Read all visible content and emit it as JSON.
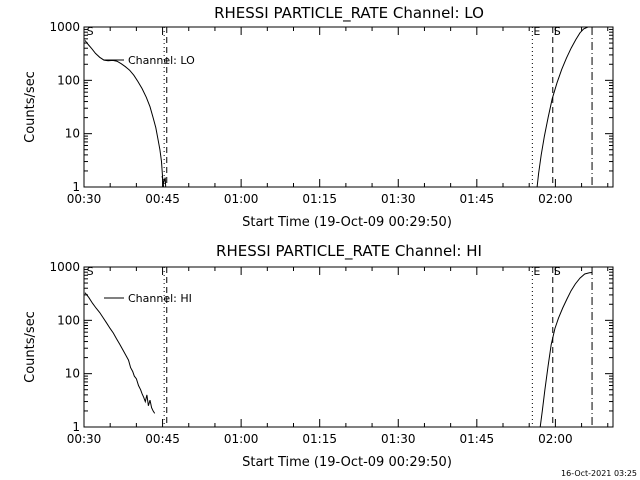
{
  "timestamp": "16-Oct-2021 03:25",
  "chart_data": [
    {
      "type": "line",
      "title": "RHESSI PARTICLE_RATE Channel: LO",
      "xlabel": "Start Time (19-Oct-09 00:29:50)",
      "ylabel": "Counts/sec",
      "y_scale": "log",
      "ylim": [
        1,
        1000
      ],
      "xlim": [
        30,
        131
      ],
      "x_ticks": [
        30,
        45,
        60,
        75,
        90,
        105,
        120
      ],
      "x_tick_labels": [
        "00:30",
        "00:45",
        "01:00",
        "01:15",
        "01:30",
        "01:45",
        "02:00"
      ],
      "y_ticks": [
        1,
        10,
        100,
        1000
      ],
      "y_tick_labels": [
        "1",
        "10",
        "100",
        "1000"
      ],
      "legend": "top-left",
      "series": [
        {
          "name": "Channel: LO",
          "segments": [
            [
              [
                30.2,
                560
              ],
              [
                30.8,
                470
              ],
              [
                31.5,
                390
              ],
              [
                32.2,
                320
              ],
              [
                33.0,
                270
              ],
              [
                33.8,
                240
              ],
              [
                34.6,
                232
              ],
              [
                35.5,
                236
              ],
              [
                36.3,
                228
              ],
              [
                37.1,
                205
              ],
              [
                37.9,
                180
              ],
              [
                38.7,
                155
              ],
              [
                39.5,
                125
              ],
              [
                40.3,
                95
              ],
              [
                41.1,
                70
              ],
              [
                41.9,
                48
              ],
              [
                42.6,
                32
              ],
              [
                43.2,
                20
              ],
              [
                43.7,
                13
              ],
              [
                44.1,
                8
              ],
              [
                44.5,
                5
              ],
              [
                44.8,
                3
              ],
              [
                45.0,
                1.5
              ],
              [
                45.2,
                1.0
              ]
            ],
            [
              [
                44.9,
                1.6
              ],
              [
                45.2,
                1.2
              ],
              [
                45.5,
                1.5
              ],
              [
                45.6,
                1.0
              ]
            ],
            [
              [
                116.5,
                1.0
              ],
              [
                116.8,
                1.8
              ],
              [
                117.3,
                4
              ],
              [
                117.9,
                9
              ],
              [
                118.6,
                20
              ],
              [
                119.4,
                45
              ],
              [
                120.3,
                90
              ],
              [
                121.2,
                160
              ],
              [
                122.1,
                260
              ],
              [
                123.0,
                400
              ],
              [
                123.9,
                580
              ],
              [
                124.7,
                780
              ],
              [
                125.4,
                920
              ],
              [
                126.2,
                1000
              ],
              [
                127.0,
                1000
              ]
            ]
          ]
        }
      ],
      "markers": [
        {
          "label": "S",
          "x": 30.3,
          "style": "none"
        },
        {
          "label": "",
          "x": 45.3,
          "style": "dotted"
        },
        {
          "label": "",
          "x": 45.8,
          "style": "dashed"
        },
        {
          "label": "E",
          "x": 115.6,
          "style": "dotted"
        },
        {
          "label": "S",
          "x": 119.5,
          "style": "dashed"
        },
        {
          "label": "",
          "x": 127.0,
          "style": "dashdot"
        }
      ]
    },
    {
      "type": "line",
      "title": "RHESSI PARTICLE_RATE Channel: HI",
      "xlabel": "Start Time (19-Oct-09 00:29:50)",
      "ylabel": "Counts/sec",
      "y_scale": "log",
      "ylim": [
        1,
        1000
      ],
      "xlim": [
        30,
        131
      ],
      "x_ticks": [
        30,
        45,
        60,
        75,
        90,
        105,
        120
      ],
      "x_tick_labels": [
        "00:30",
        "00:45",
        "01:00",
        "01:15",
        "01:30",
        "01:45",
        "02:00"
      ],
      "y_ticks": [
        1,
        10,
        100,
        1000
      ],
      "y_tick_labels": [
        "1",
        "10",
        "100",
        "1000"
      ],
      "legend": "top-left",
      "series": [
        {
          "name": "Channel: HI",
          "segments": [
            [
              [
                30.2,
                330
              ],
              [
                30.9,
                270
              ],
              [
                31.6,
                210
              ],
              [
                32.3,
                170
              ],
              [
                33.0,
                140
              ],
              [
                33.7,
                110
              ],
              [
                34.3,
                90
              ],
              [
                35.0,
                70
              ],
              [
                35.6,
                58
              ],
              [
                36.2,
                45
              ],
              [
                36.8,
                36
              ],
              [
                37.4,
                28
              ],
              [
                38.0,
                22
              ],
              [
                38.5,
                18
              ],
              [
                38.9,
                13
              ],
              [
                39.3,
                11
              ],
              [
                39.6,
                9
              ],
              [
                40.0,
                8
              ],
              [
                40.4,
                6
              ],
              [
                40.8,
                5
              ],
              [
                41.1,
                4.2
              ],
              [
                41.4,
                3.6
              ],
              [
                41.7,
                3.0
              ],
              [
                42.0,
                4.0
              ],
              [
                42.3,
                2.5
              ],
              [
                42.6,
                3.2
              ],
              [
                42.9,
                2.3
              ],
              [
                43.2,
                2.0
              ],
              [
                43.5,
                1.8
              ]
            ]
          ]
        },
        {
          "name": "",
          "segments": [
            [
              [
                117.1,
                1.0
              ],
              [
                117.5,
                2
              ],
              [
                118.0,
                5
              ],
              [
                118.6,
                14
              ],
              [
                119.2,
                35
              ],
              [
                119.9,
                70
              ],
              [
                120.6,
                110
              ],
              [
                121.4,
                170
              ],
              [
                122.2,
                250
              ],
              [
                123.0,
                360
              ],
              [
                123.8,
                480
              ],
              [
                124.7,
                620
              ],
              [
                125.6,
                740
              ],
              [
                126.5,
                780
              ],
              [
                127.0,
                790
              ]
            ]
          ]
        }
      ],
      "markers": [
        {
          "label": "S",
          "x": 30.3,
          "style": "none"
        },
        {
          "label": "",
          "x": 45.3,
          "style": "dotted"
        },
        {
          "label": "",
          "x": 45.8,
          "style": "dashed"
        },
        {
          "label": "E",
          "x": 115.6,
          "style": "dotted"
        },
        {
          "label": "S",
          "x": 119.5,
          "style": "dashed"
        },
        {
          "label": "",
          "x": 127.0,
          "style": "dashdot"
        }
      ]
    }
  ]
}
